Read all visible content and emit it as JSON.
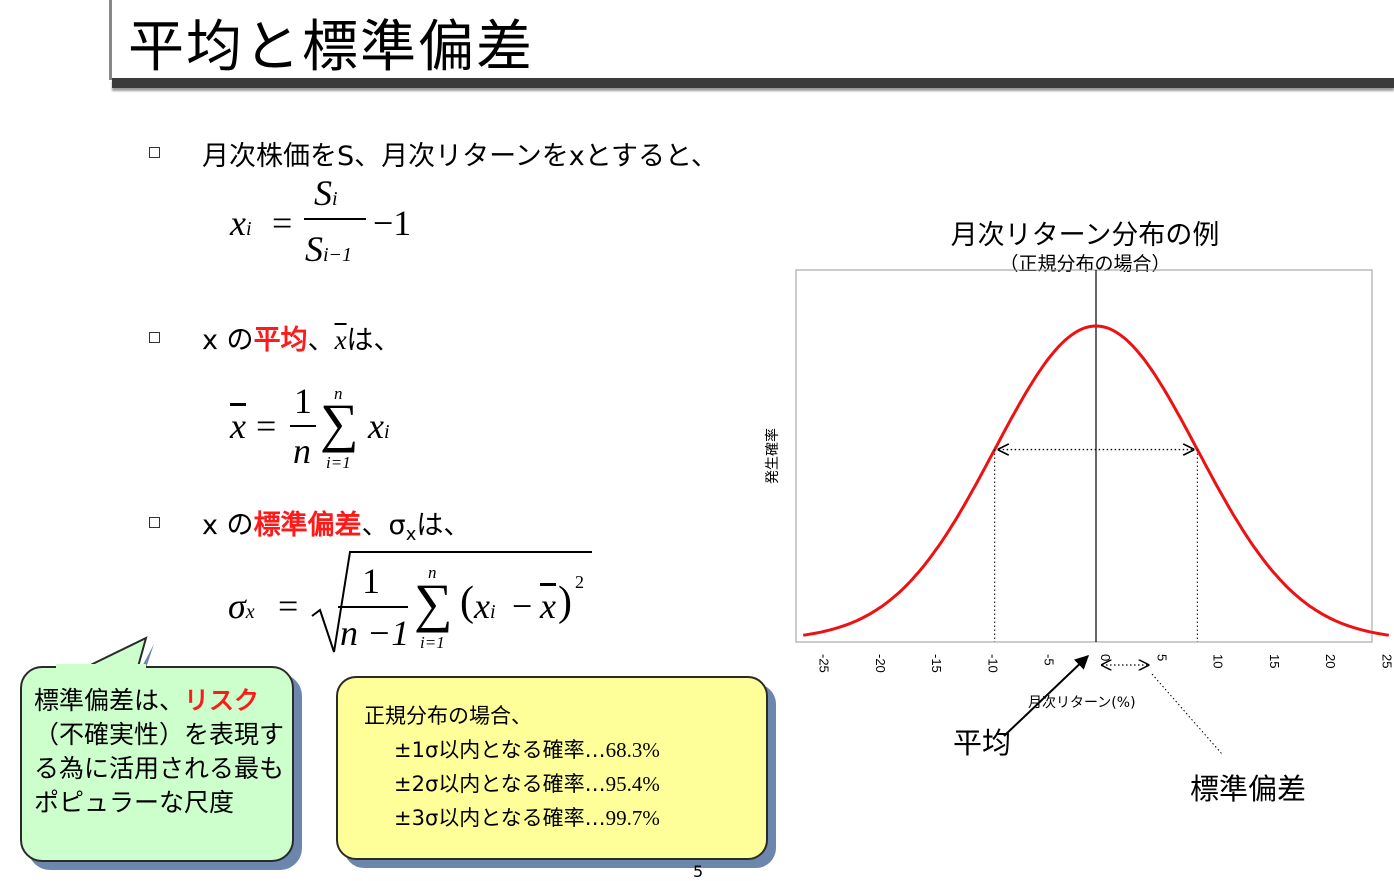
{
  "slide": {
    "title": "平均と標準偏差",
    "bullet1": "月次株価をS、月次リターンをxとすると、",
    "bullet2": {
      "pre": "x の",
      "hl": "平均",
      "post1": "、",
      "xbar": "x",
      "post2": "は、"
    },
    "bullet3": {
      "pre": "x の",
      "hl": "標準偏差",
      "post1": "、σ",
      "sub": "x",
      "post2": "は、"
    },
    "page_number": "5"
  },
  "formulas": {
    "f1": {
      "lhs": "x",
      "lhs_sub": "i",
      "eq": "=",
      "num": "S",
      "num_sub": "i",
      "den": "S",
      "den_sub": "i−1",
      "tail": "−1"
    },
    "f2": {
      "lhs": "x",
      "eq": "=",
      "num": "1",
      "den": "n",
      "sum": "∑",
      "top": "n",
      "bot": "i=1",
      "term": "x",
      "term_sub": "i"
    },
    "f3": {
      "lhs": "σ",
      "lhs_sub": "x",
      "eq": "=",
      "num": "1",
      "den": "n −1",
      "sum": "∑",
      "top": "n",
      "bot": "i=1",
      "lp": "(",
      "x": "x",
      "x_sub": "i",
      "minus": "−",
      "xbar": "x",
      "rp": ")",
      "pow": "2"
    }
  },
  "callout": {
    "pre": "標準偏差は、",
    "hl": "リスク",
    "post": "（不確実性）を表現する為に活用される最もポピュラーな尺度"
  },
  "normal_box": {
    "head": "正規分布の場合、",
    "lines": [
      {
        "label": "±1σ以内となる確率…",
        "value": "68.3%"
      },
      {
        "label": "±2σ以内となる確率…",
        "value": "95.4%"
      },
      {
        "label": "±3σ以内となる確率…",
        "value": "99.7%"
      }
    ]
  },
  "chart_data": {
    "type": "line",
    "title": "月次リターン分布の例",
    "subtitle": "（正規分布の場合）",
    "xlabel": "月次リターン(%)",
    "ylabel": "発生確率",
    "xlim": [
      -26,
      26
    ],
    "x_ticks": [
      "-25",
      "-20",
      "-15",
      "-10",
      "-5",
      "0",
      "5",
      "10",
      "15",
      "20",
      "25"
    ],
    "series": [
      {
        "mean": 0,
        "sd": 9,
        "color": "#ee1111"
      }
    ],
    "mean_line": 0,
    "sd_markers": [
      -9,
      9
    ],
    "annotations": [
      "平均",
      "標準偏差"
    ]
  },
  "colors": {
    "accent_red": "#ff1a1a",
    "curve_red": "#ee1111",
    "callout_green": "#ccffcc",
    "box_yellow": "#ffff99",
    "shadow": "#6d86ad"
  }
}
